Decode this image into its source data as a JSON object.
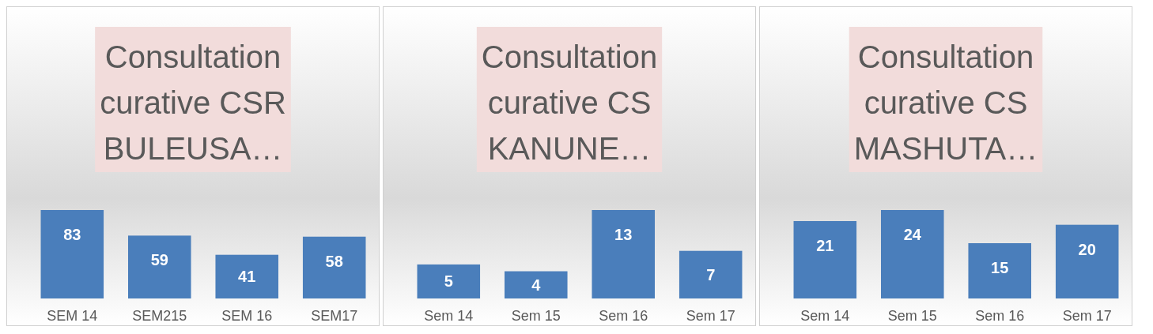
{
  "chart_data": [
    {
      "type": "bar",
      "title": "Consultation curative CSR BULEUSA…",
      "categories": [
        "SEM 14",
        "SEM215",
        "SEM 16",
        "SEM17"
      ],
      "values": [
        83,
        59,
        41,
        58
      ],
      "color": "#4a7ebb",
      "data_labels": true
    },
    {
      "type": "bar",
      "title": "Consultation curative CS KANUNE…",
      "categories": [
        "Sem 14",
        "Sem 15",
        "Sem 16",
        "Sem 17"
      ],
      "values": [
        5,
        4,
        13,
        7
      ],
      "color": "#4a7ebb",
      "data_labels": true
    },
    {
      "type": "bar",
      "title": "Consultation curative CS MASHUTA…",
      "categories": [
        "Sem 14",
        "Sem 15",
        "Sem 16",
        "Sem 17"
      ],
      "values": [
        21,
        24,
        15,
        20
      ],
      "color": "#4a7ebb",
      "data_labels": true
    }
  ]
}
